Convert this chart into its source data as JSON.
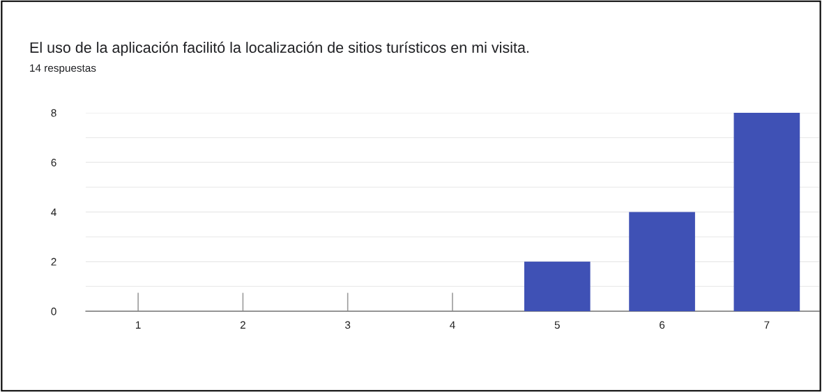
{
  "chart_data": {
    "type": "bar",
    "title": "El uso de la aplicación facilitó la localización de sitios turísticos en mi visita.",
    "subtitle": "14 respuestas",
    "categories": [
      "1",
      "2",
      "3",
      "4",
      "5",
      "6",
      "7"
    ],
    "values": [
      0,
      0,
      0,
      0,
      2,
      4,
      8
    ],
    "color": "#3f51b5",
    "ylim": [
      0,
      8
    ],
    "yticks": [
      0,
      {
        "value": 1,
        "label": null
      },
      2,
      {
        "value": 3,
        "label": null
      },
      4,
      {
        "value": 5,
        "label": null
      },
      6,
      {
        "value": 7,
        "label": null
      },
      8
    ],
    "grid": "y",
    "legend": false
  }
}
